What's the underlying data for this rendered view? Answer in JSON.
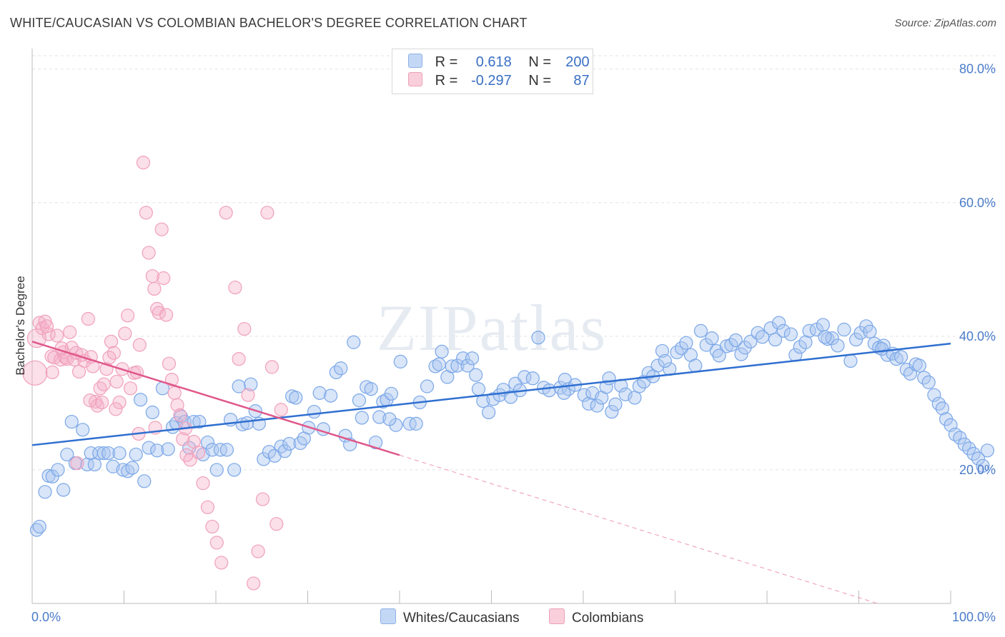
{
  "title": "WHITE/CAUCASIAN VS COLOMBIAN BACHELOR'S DEGREE CORRELATION CHART",
  "source": "Source: ZipAtlas.com",
  "watermark": "ZIPatlas",
  "legend": {
    "rows": [
      {
        "r_label": "R =",
        "r_value": "0.618",
        "n_label": "N =",
        "n_value": "200",
        "color": "#a9c6f0"
      },
      {
        "r_label": "R =",
        "r_value": "-0.297",
        "n_label": "N =",
        "n_value": "87",
        "color": "#f6b8cb"
      }
    ]
  },
  "bottom_legend": [
    {
      "label": "Whites/Caucasians",
      "color": "#a9c6f0"
    },
    {
      "label": "Colombians",
      "color": "#f6b8cb"
    }
  ],
  "chart_data": {
    "type": "scatter",
    "title": "WHITE/CAUCASIAN VS COLOMBIAN BACHELOR'S DEGREE CORRELATION CHART",
    "xlabel": "",
    "ylabel": "Bachelor's Degree",
    "xlim": [
      0,
      100
    ],
    "ylim": [
      0,
      82
    ],
    "x_tick_labels": [
      {
        "value": 0,
        "label": "0.0%"
      },
      {
        "value": 100,
        "label": "100.0%"
      }
    ],
    "y_tick_labels": [
      {
        "value": 20,
        "label": "20.0%"
      },
      {
        "value": 40,
        "label": "40.0%"
      },
      {
        "value": 60,
        "label": "60.0%"
      },
      {
        "value": 80,
        "label": "80.0%"
      }
    ],
    "grid": true,
    "legend_position": "top-center",
    "series": [
      {
        "name": "Whites/Caucasians",
        "color": "#7aa7e8",
        "line_color": "#2f6fd0",
        "trend": {
          "x": [
            0,
            100
          ],
          "y": [
            23.7,
            38.9
          ]
        },
        "points": [
          [
            0.5,
            11
          ],
          [
            0.8,
            11.5
          ],
          [
            1.4,
            16.7
          ],
          [
            1.8,
            19.1
          ],
          [
            2.2,
            19
          ],
          [
            2.8,
            20
          ],
          [
            3.4,
            17
          ],
          [
            3.8,
            22.3
          ],
          [
            4.3,
            27.2
          ],
          [
            4.7,
            21
          ],
          [
            5.5,
            26
          ],
          [
            6,
            20.8
          ],
          [
            6.4,
            22.5
          ],
          [
            6.8,
            20.8
          ],
          [
            7.3,
            22.5
          ],
          [
            7.8,
            22.5
          ],
          [
            8.3,
            22.5
          ],
          [
            8.8,
            20.5
          ],
          [
            9.5,
            22.5
          ],
          [
            9.9,
            20
          ],
          [
            10.4,
            19.8
          ],
          [
            10.9,
            20.3
          ],
          [
            11.3,
            22.3
          ],
          [
            11.8,
            30.5
          ],
          [
            12.2,
            18.3
          ],
          [
            12.7,
            23.3
          ],
          [
            13.1,
            28.6
          ],
          [
            13.6,
            22.9
          ],
          [
            14.2,
            32.2
          ],
          [
            14.8,
            23.1
          ],
          [
            15.3,
            26.4
          ],
          [
            15.7,
            27
          ],
          [
            16.2,
            28
          ],
          [
            16.6,
            27.2
          ],
          [
            17.1,
            23.3
          ],
          [
            17.6,
            27.2
          ],
          [
            18.2,
            27.2
          ],
          [
            18.6,
            22.3
          ],
          [
            19.1,
            24.1
          ],
          [
            19.6,
            23
          ],
          [
            20.1,
            20
          ],
          [
            20.5,
            23
          ],
          [
            21.2,
            23
          ],
          [
            21.6,
            27.5
          ],
          [
            22,
            20
          ],
          [
            22.5,
            32.5
          ],
          [
            22.9,
            26.8
          ],
          [
            23.4,
            27
          ],
          [
            23.8,
            32.8
          ],
          [
            24.3,
            28.8
          ],
          [
            24.7,
            26.9
          ],
          [
            25.2,
            21.6
          ],
          [
            25.8,
            22.7
          ],
          [
            26.4,
            22.1
          ],
          [
            27.1,
            23.5
          ],
          [
            27.5,
            22.8
          ],
          [
            28,
            23.9
          ],
          [
            28.3,
            31
          ],
          [
            28.7,
            30.8
          ],
          [
            29.2,
            24
          ],
          [
            29.6,
            24.7
          ],
          [
            30.1,
            26.3
          ],
          [
            30.7,
            28.7
          ],
          [
            31.3,
            31.5
          ],
          [
            31.7,
            26.1
          ],
          [
            32.5,
            31.1
          ],
          [
            33.1,
            34.6
          ],
          [
            33.6,
            35.2
          ],
          [
            34.1,
            25.1
          ],
          [
            34.6,
            23.8
          ],
          [
            35,
            39.1
          ],
          [
            35.6,
            30.4
          ],
          [
            35.9,
            27.8
          ],
          [
            36.4,
            32.4
          ],
          [
            36.9,
            32.1
          ],
          [
            37.4,
            24.1
          ],
          [
            37.8,
            27.9
          ],
          [
            38.2,
            30.2
          ],
          [
            38.6,
            30.5
          ],
          [
            39.1,
            31.4
          ],
          [
            39.6,
            26.7
          ],
          [
            40.1,
            36.2
          ],
          [
            41.1,
            26.9
          ],
          [
            41.8,
            26.9
          ],
          [
            42.2,
            30.1
          ],
          [
            43,
            32.5
          ],
          [
            43.9,
            35.5
          ],
          [
            44.6,
            37.7
          ],
          [
            45.2,
            33.9
          ],
          [
            45.7,
            35.5
          ],
          [
            46.3,
            35.6
          ],
          [
            46.9,
            36.7
          ],
          [
            47.4,
            35.6
          ],
          [
            47.9,
            36.7
          ],
          [
            48.6,
            32.1
          ],
          [
            49.1,
            30.3
          ],
          [
            49.7,
            28.6
          ],
          [
            50.2,
            30.6
          ],
          [
            50.9,
            31.2
          ],
          [
            51.3,
            32
          ],
          [
            52.1,
            30.9
          ],
          [
            52.6,
            32.9
          ],
          [
            53.1,
            31.9
          ],
          [
            53.6,
            33.9
          ],
          [
            54.5,
            33.7
          ],
          [
            55.1,
            39.8
          ],
          [
            55.7,
            32.3
          ],
          [
            56.3,
            31.9
          ],
          [
            57.5,
            32.3
          ],
          [
            58,
            33.5
          ],
          [
            58.4,
            32.1
          ],
          [
            59.1,
            32.7
          ],
          [
            60.1,
            31.2
          ],
          [
            60.6,
            29.9
          ],
          [
            61,
            31.5
          ],
          [
            61.5,
            29.6
          ],
          [
            62,
            30.8
          ],
          [
            62.5,
            32.4
          ],
          [
            63.1,
            28.7
          ],
          [
            63.5,
            29.8
          ],
          [
            64.1,
            32.6
          ],
          [
            64.6,
            31.3
          ],
          [
            65.6,
            30.8
          ],
          [
            66.1,
            32.5
          ],
          [
            66.6,
            33.2
          ],
          [
            67.1,
            34.5
          ],
          [
            67.6,
            34
          ],
          [
            68.1,
            35.6
          ],
          [
            68.6,
            37.8
          ],
          [
            69.4,
            35.1
          ],
          [
            70.2,
            37.6
          ],
          [
            70.7,
            38.2
          ],
          [
            71.2,
            39
          ],
          [
            71.7,
            37.2
          ],
          [
            72.2,
            35.6
          ],
          [
            72.8,
            40.8
          ],
          [
            73.4,
            38.7
          ],
          [
            74,
            39.7
          ],
          [
            74.5,
            37.8
          ],
          [
            75.6,
            38.5
          ],
          [
            76.1,
            38.7
          ],
          [
            76.6,
            39.4
          ],
          [
            77.2,
            37.3
          ],
          [
            77.6,
            38.3
          ],
          [
            78.2,
            39.2
          ],
          [
            79,
            40.5
          ],
          [
            79.5,
            39.9
          ],
          [
            80.4,
            41.2
          ],
          [
            80.9,
            39.5
          ],
          [
            81.3,
            42
          ],
          [
            81.8,
            40.8
          ],
          [
            82.6,
            40.3
          ],
          [
            83.1,
            37.2
          ],
          [
            83.6,
            38.4
          ],
          [
            84.2,
            39.1
          ],
          [
            84.6,
            40.8
          ],
          [
            85.4,
            41
          ],
          [
            86.1,
            41.7
          ],
          [
            86.6,
            39.6
          ],
          [
            87.1,
            39.7
          ],
          [
            87.7,
            38.6
          ],
          [
            88.4,
            41
          ],
          [
            89.1,
            36.3
          ],
          [
            89.7,
            39.5
          ],
          [
            90.2,
            40.5
          ],
          [
            90.8,
            41.5
          ],
          [
            91.2,
            40.7
          ],
          [
            91.7,
            38.9
          ],
          [
            92.2,
            38.3
          ],
          [
            92.7,
            38.6
          ],
          [
            93.1,
            37.2
          ],
          [
            93.7,
            37.4
          ],
          [
            94.1,
            36.6
          ],
          [
            94.6,
            36.9
          ],
          [
            95.2,
            35
          ],
          [
            95.6,
            34.4
          ],
          [
            96.2,
            35.8
          ],
          [
            96.6,
            35.6
          ],
          [
            97.1,
            33.8
          ],
          [
            97.6,
            33.1
          ],
          [
            98.2,
            31.2
          ],
          [
            98.7,
            29.9
          ],
          [
            99.1,
            29.2
          ],
          [
            99.5,
            27.6
          ],
          [
            100,
            26.7
          ],
          [
            100.5,
            25.3
          ],
          [
            101,
            24.8
          ],
          [
            101.5,
            23.8
          ],
          [
            102,
            23.2
          ],
          [
            102.5,
            22.4
          ],
          [
            103,
            21.7
          ],
          [
            103.5,
            20.6
          ],
          [
            104,
            22.9
          ],
          [
            92.5,
            38.1
          ],
          [
            86.3,
            39.9
          ],
          [
            74.8,
            37.1
          ],
          [
            68.9,
            36.3
          ],
          [
            62.8,
            33.7
          ],
          [
            57.9,
            31.5
          ],
          [
            48.3,
            34.2
          ],
          [
            44.3,
            35.8
          ],
          [
            38.9,
            27.6
          ]
        ]
      },
      {
        "name": "Colombians",
        "color": "#f4a3bd",
        "line_color": "#e0588a",
        "trend": {
          "x": [
            0,
            40,
            100
          ],
          "y": [
            39.2,
            22.2,
            -3.4
          ],
          "solid_to_x": 40
        },
        "points": [
          [
            0.3,
            34.5
          ],
          [
            0.5,
            39.7
          ],
          [
            0.8,
            42
          ],
          [
            1.1,
            41.2
          ],
          [
            1.4,
            42.2
          ],
          [
            1.6,
            41.5
          ],
          [
            1.8,
            40.3
          ],
          [
            2.1,
            37
          ],
          [
            2.4,
            36.8
          ],
          [
            2.7,
            40.1
          ],
          [
            3.1,
            36.5
          ],
          [
            3.4,
            37.6
          ],
          [
            3.6,
            36.8
          ],
          [
            3.8,
            36.6
          ],
          [
            4.1,
            40.6
          ],
          [
            4.3,
            38.3
          ],
          [
            4.6,
            36.5
          ],
          [
            4.8,
            37.5
          ],
          [
            5.1,
            34.7
          ],
          [
            5.4,
            37.2
          ],
          [
            5.7,
            36.3
          ],
          [
            6.1,
            42.6
          ],
          [
            6.4,
            36.9
          ],
          [
            6.6,
            35.5
          ],
          [
            6.9,
            30.2
          ],
          [
            7.1,
            29.6
          ],
          [
            7.4,
            32.2
          ],
          [
            7.6,
            30.1
          ],
          [
            7.8,
            32.8
          ],
          [
            8.1,
            35.1
          ],
          [
            8.4,
            36.8
          ],
          [
            8.6,
            39.2
          ],
          [
            8.9,
            37.5
          ],
          [
            9.2,
            33.2
          ],
          [
            9.5,
            30.1
          ],
          [
            9.8,
            35.1
          ],
          [
            10.1,
            40.4
          ],
          [
            10.4,
            43.1
          ],
          [
            10.7,
            32.2
          ],
          [
            11.1,
            34.5
          ],
          [
            11.4,
            34.6
          ],
          [
            11.7,
            38.7
          ],
          [
            12.1,
            66
          ],
          [
            12.4,
            58.5
          ],
          [
            12.7,
            52.5
          ],
          [
            13.1,
            49
          ],
          [
            13.3,
            47.1
          ],
          [
            13.6,
            44.1
          ],
          [
            13.8,
            43.5
          ],
          [
            14.1,
            56
          ],
          [
            14.3,
            48.7
          ],
          [
            14.6,
            43.2
          ],
          [
            14.9,
            35.9
          ],
          [
            15.2,
            33.5
          ],
          [
            15.5,
            31.5
          ],
          [
            15.8,
            29.7
          ],
          [
            16.1,
            28.2
          ],
          [
            16.4,
            24.6
          ],
          [
            16.8,
            22.2
          ],
          [
            17.2,
            21.5
          ],
          [
            17.6,
            24.2
          ],
          [
            18.1,
            22.6
          ],
          [
            18.6,
            18
          ],
          [
            19.1,
            14.4
          ],
          [
            19.6,
            11.5
          ],
          [
            20.1,
            9.1
          ],
          [
            20.6,
            6.1
          ],
          [
            21.1,
            58.5
          ],
          [
            22.1,
            47.3
          ],
          [
            22.5,
            36.6
          ],
          [
            23.1,
            41.1
          ],
          [
            23.5,
            31.2
          ],
          [
            24.1,
            3
          ],
          [
            24.6,
            7.8
          ],
          [
            25.1,
            15.6
          ],
          [
            25.6,
            58.5
          ],
          [
            26.1,
            35.4
          ],
          [
            26.6,
            11.9
          ],
          [
            27.1,
            29
          ],
          [
            16.7,
            26.2
          ],
          [
            13.4,
            26.3
          ],
          [
            11.6,
            25.4
          ],
          [
            9.1,
            29.1
          ],
          [
            6.3,
            30.4
          ],
          [
            4.9,
            21
          ],
          [
            3.2,
            38.2
          ],
          [
            2.2,
            34.6
          ]
        ]
      }
    ]
  }
}
